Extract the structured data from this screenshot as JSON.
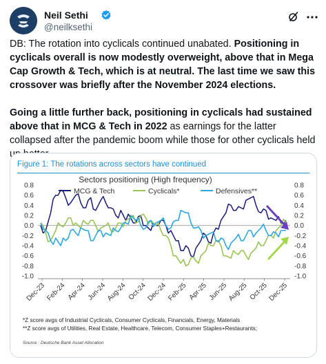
{
  "author": {
    "name": "Neil Sethi",
    "handle": "@neilksethi"
  },
  "tweet": {
    "p1_a": "DB: The rotation into cyclicals continued unabated.  ",
    "p1_b": "Positioning in cyclicals overall is now modestly overweight, above that in Mega Cap Growth & Tech, which is at neutral. The last time we saw this crossover was briefly after the November 2024 elections.",
    "p2_a": "Going a little further back, positioning in cyclicals had sustained above that in MCG & Tech in 2022",
    "p2_b": " as earnings for the latter collapsed after the pandemic boom while those for other cyclicals held up better."
  },
  "figure": {
    "title": "Figure 1: The rotations across sectors have continued",
    "footnote1": "*Z score avgs of Industrial Cyclicals, Consumer Cyclicals, Financials, Energy, Materials",
    "footnote2": "**Z score avgs of Utilities, Real Estate, Healthcare, Telecom, Consumer Staples+Restaurants;",
    "source": "Source : Deutsche Bank Asset Allocation"
  },
  "colors": {
    "mcg": "#1a1a7a",
    "cyclicals": "#99c355",
    "defensives": "#2aa6e0",
    "arrow_purple": "#6a3fc0",
    "arrow_green": "#a4d84a",
    "accent_blue": "#1a8fd6"
  },
  "icons": {
    "verified": "verified-badge-icon",
    "grok": "grok-icon",
    "more": "more-options-icon"
  },
  "chart_data": {
    "type": "line",
    "title": "Sectors positioning (High frequency)",
    "xlabel": "",
    "ylabel": "",
    "ylim": [
      -1.0,
      0.8
    ],
    "y_ticks": [
      "0.8",
      "0.6",
      "0.4",
      "0.2",
      "0.0",
      "-0.2",
      "-0.4",
      "-0.6",
      "-0.8",
      "-1.0"
    ],
    "x_ticks": [
      "Dec-23",
      "Feb-24",
      "Apr-24",
      "Jun-24",
      "Aug-24",
      "Oct-24",
      "Dec-24",
      "Feb-25",
      "Apr-25",
      "Jun-25",
      "Aug-25",
      "Oct-25",
      "Dec-25"
    ],
    "grid": false,
    "legend_position": "top",
    "series": [
      {
        "name": "MCG & Tech",
        "values": [
          0.0,
          -0.1,
          0.25,
          0.6,
          0.7,
          0.55,
          0.45,
          0.6,
          0.45,
          0.35,
          0.55,
          0.3,
          0.5,
          0.45,
          0.35,
          0.2,
          0.3,
          0.1,
          0.15,
          0.05,
          0.2,
          0.0,
          -0.1,
          0.0,
          0.1,
          0.0,
          -0.1,
          -0.3,
          -0.5,
          -0.4,
          -0.6,
          -0.45,
          -0.3,
          -0.2,
          -0.35,
          -0.05,
          0.1,
          0.25,
          0.4,
          0.3,
          0.35,
          0.5,
          0.55,
          0.4,
          0.25,
          0.3,
          0.15,
          0.1,
          0.05,
          0.1
        ]
      },
      {
        "name": "Cyclicals*",
        "values": [
          0.05,
          -0.15,
          -0.3,
          -0.1,
          0.0,
          0.05,
          0.15,
          0.05,
          -0.05,
          0.05,
          0.1,
          0.0,
          -0.05,
          0.0,
          -0.1,
          -0.05,
          0.05,
          0.1,
          0.15,
          0.05,
          0.2,
          0.15,
          0.1,
          0.0,
          -0.1,
          -0.2,
          -0.4,
          -0.6,
          -0.75,
          -0.8,
          -0.65,
          -0.7,
          -0.6,
          -0.5,
          -0.4,
          -0.3,
          -0.4,
          -0.6,
          -0.65,
          -0.55,
          -0.5,
          -0.6,
          -0.55,
          -0.45,
          -0.4,
          -0.3,
          -0.2,
          -0.1,
          0.0,
          0.05
        ]
      },
      {
        "name": "Defensives**",
        "values": [
          0.05,
          -0.1,
          -0.3,
          -0.25,
          -0.4,
          -0.3,
          -0.1,
          -0.15,
          -0.05,
          -0.1,
          -0.3,
          -0.2,
          -0.1,
          -0.15,
          -0.2,
          -0.1,
          -0.05,
          0.05,
          0.2,
          0.1,
          0.0,
          -0.05,
          0.1,
          0.05,
          0.1,
          0.0,
          -0.05,
          0.1,
          0.3,
          0.25,
          0.05,
          -0.05,
          -0.1,
          -0.2,
          -0.15,
          -0.3,
          -0.25,
          -0.4,
          -0.35,
          -0.25,
          -0.3,
          -0.2,
          -0.1,
          -0.15,
          -0.05,
          -0.1,
          -0.2,
          -0.15,
          -0.1,
          -0.1
        ]
      }
    ]
  }
}
